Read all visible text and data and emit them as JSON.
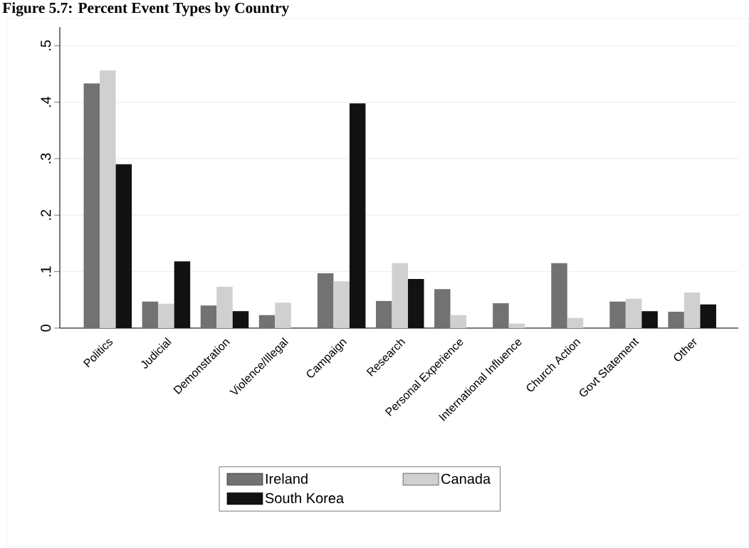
{
  "chart_data": {
    "type": "bar",
    "title": "Figure 5.7: Percent Event Types by Country",
    "categories": [
      "Politics",
      "Judicial",
      "Demonstration",
      "Violence/Illegal",
      "Campaign",
      "Research",
      "Personal Experience",
      "International Influence",
      "Church Action",
      "Govt Statement",
      "Other"
    ],
    "series": [
      {
        "name": "Ireland",
        "color": "#727272",
        "values": [
          0.433,
          0.047,
          0.04,
          0.023,
          0.097,
          0.048,
          0.069,
          0.044,
          0.115,
          0.047,
          0.029
        ]
      },
      {
        "name": "Canada",
        "color": "#d0d0d0",
        "values": [
          0.456,
          0.043,
          0.073,
          0.045,
          0.083,
          0.115,
          0.023,
          0.008,
          0.018,
          0.052,
          0.063
        ]
      },
      {
        "name": "South Korea",
        "color": "#121212",
        "values": [
          0.29,
          0.118,
          0.03,
          0,
          0.398,
          0.087,
          0,
          0,
          0,
          0.03,
          0.042
        ]
      }
    ],
    "ylim": [
      0,
      0.533
    ],
    "yticks": [
      0,
      {
        "value": 0.1,
        "label": ".1"
      },
      {
        "value": 0.2,
        "label": ".2"
      },
      {
        "value": 0.3,
        "label": ".3"
      },
      {
        "value": 0.4,
        "label": ".4"
      },
      {
        "value": 0.5,
        "label": ".5"
      }
    ],
    "grid": "y",
    "legend": "bottom"
  }
}
